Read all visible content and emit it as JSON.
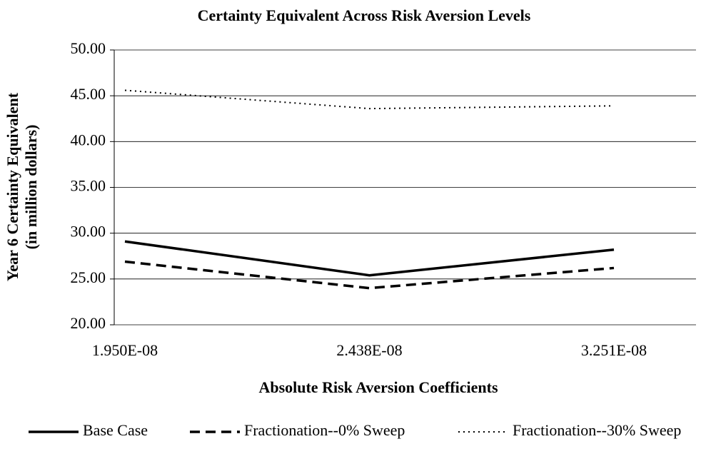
{
  "chart_data": {
    "type": "line",
    "title": "Certainty Equivalent Across Risk Aversion Levels",
    "x_label": "Absolute Risk Aversion Coefficients",
    "y_label": [
      "Year 6 Certainty Equivalent",
      "(in million dollars)"
    ],
    "categories": [
      "1.950E-08",
      "2.438E-08",
      "3.251E-08"
    ],
    "series": [
      {
        "name": "Base Case",
        "color": "#000000",
        "style": "solid",
        "values": [
          29.1,
          25.4,
          28.2
        ]
      },
      {
        "name": "Fractionation--0% Sweep",
        "color": "#000000",
        "style": "dashed",
        "values": [
          26.9,
          24.0,
          26.2
        ]
      },
      {
        "name": "Fractionation--30% Sweep",
        "color": "#000000",
        "style": "dotted",
        "values": [
          45.6,
          43.6,
          43.9
        ]
      }
    ],
    "ylim": [
      20,
      50
    ],
    "yticks": [
      {
        "value": 20,
        "label": "20.00"
      },
      {
        "value": 25,
        "label": "25.00"
      },
      {
        "value": 30,
        "label": "30.00"
      },
      {
        "value": 35,
        "label": "35.00"
      },
      {
        "value": 40,
        "label": "40.00"
      },
      {
        "value": 45,
        "label": "45.00"
      },
      {
        "value": 50,
        "label": "50.00"
      }
    ],
    "grid": true,
    "legend": "bottom"
  }
}
